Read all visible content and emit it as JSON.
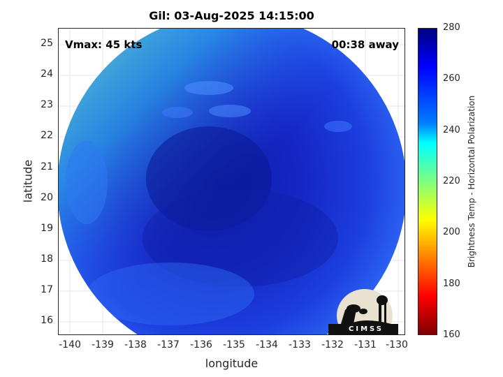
{
  "title": "Gil: 03-Aug-2025 14:15:00",
  "overlay": {
    "vmax": "Vmax: 45 kts",
    "time_away": "00:38 away"
  },
  "axes": {
    "xlabel": "longitude",
    "ylabel": "latitude",
    "xticks": [
      "-140",
      "-139",
      "-138",
      "-137",
      "-136",
      "-135",
      "-134",
      "-133",
      "-132",
      "-131",
      "-130"
    ],
    "yticks": [
      "25",
      "24",
      "23",
      "22",
      "21",
      "20",
      "19",
      "18",
      "17",
      "16"
    ]
  },
  "colorbar": {
    "label": "Brightness Temp - Horizontal Polarization",
    "ticks": [
      "280",
      "260",
      "240",
      "220",
      "200",
      "180",
      "160"
    ],
    "range": [
      160,
      280
    ],
    "colormap": "jet"
  },
  "logo": {
    "text": "CIMSS"
  },
  "chart_data": {
    "type": "heatmap",
    "title": "Gil: 03-Aug-2025 14:15:00",
    "xlabel": "longitude",
    "ylabel": "latitude",
    "xlim": [
      -140.3,
      -129.8
    ],
    "ylim": [
      15.6,
      25.5
    ],
    "clim": [
      160,
      280
    ],
    "colorbar_label": "Brightness Temp - Horizontal Polarization",
    "grid": true,
    "swath": "circular, centered near (-135.2, 20.4)"
  },
  "colors": {
    "cold": "#1a2fd6",
    "deep": "#1020b0",
    "warm_edge": "#3fc2d8"
  }
}
